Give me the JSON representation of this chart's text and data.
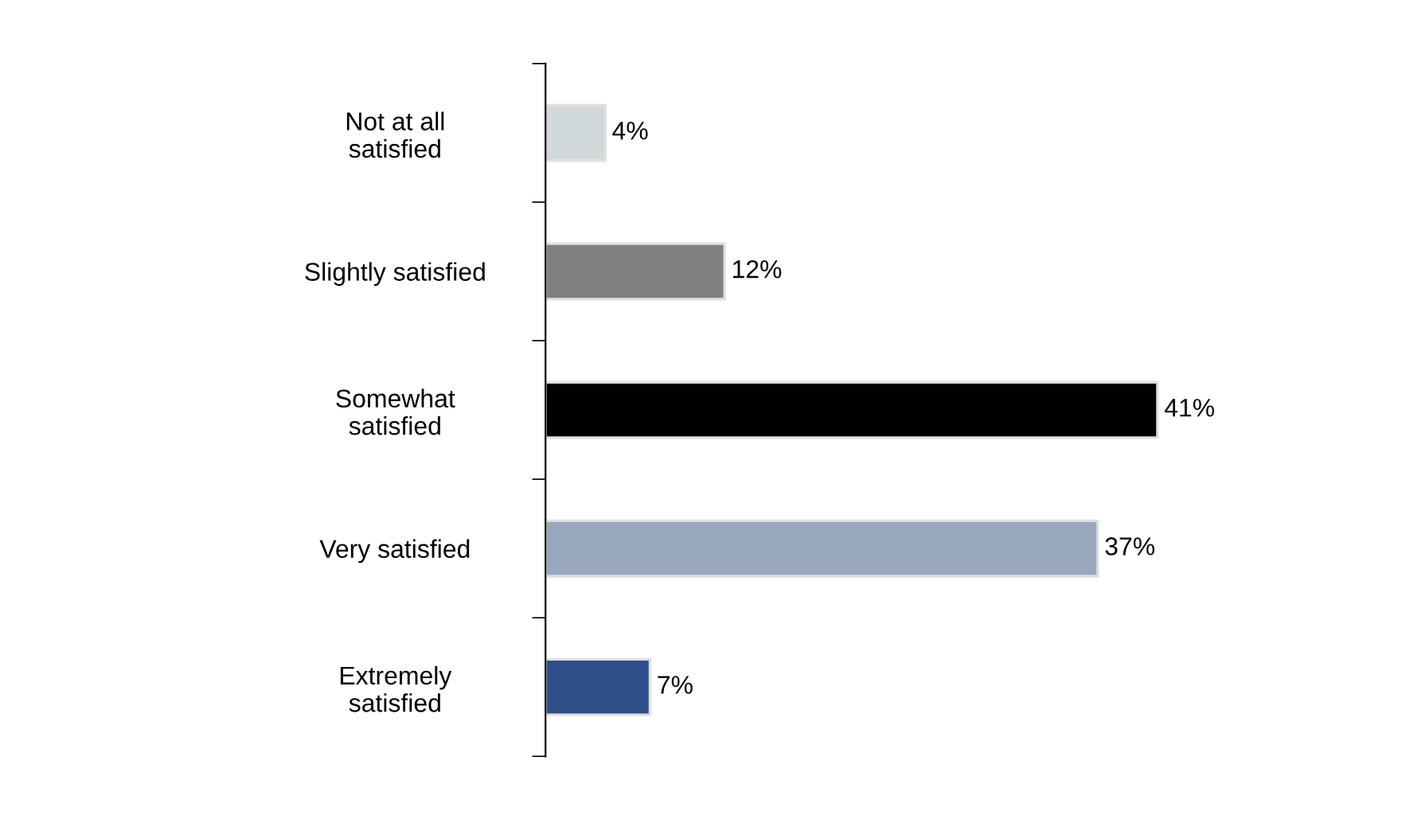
{
  "chart_data": {
    "type": "bar",
    "orientation": "horizontal",
    "categories": [
      "Not at all\nsatisfied",
      "Slightly satisfied",
      "Somewhat\nsatisfied",
      "Very satisfied",
      "Extremely\nsatisfied"
    ],
    "values": [
      4,
      12,
      41,
      37,
      7
    ],
    "colors": [
      "#d0d8d9",
      "#808080",
      "#000000",
      "#97a7bd",
      "#2e4f8a"
    ],
    "value_labels": [
      "4%",
      "12%",
      "41%",
      "37%",
      "7%"
    ],
    "grid": false,
    "legend": false,
    "tick_labels": "y"
  }
}
